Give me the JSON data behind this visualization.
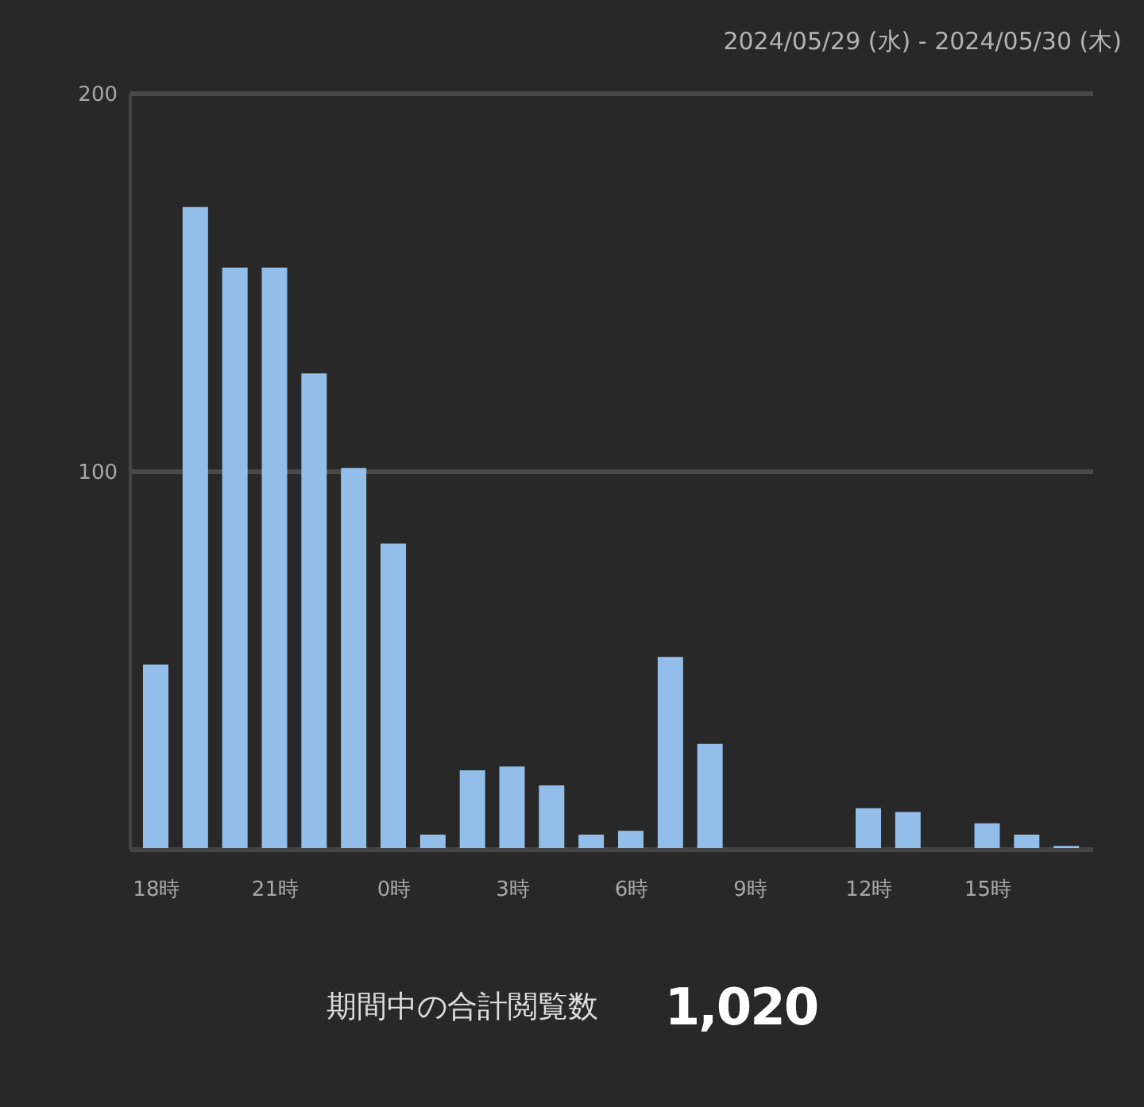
{
  "chart_data": {
    "type": "bar",
    "title": "2024/05/29 (水) - 2024/05/30 (木)",
    "categories": [
      "18時",
      null,
      null,
      "21時",
      null,
      null,
      "0時",
      null,
      null,
      "3時",
      null,
      null,
      "6時",
      null,
      null,
      "9時",
      null,
      null,
      "12時",
      null,
      null,
      "15時",
      null,
      null
    ],
    "values": [
      49,
      170,
      154,
      154,
      126,
      101,
      81,
      4,
      21,
      22,
      17,
      4,
      5,
      51,
      28,
      0,
      0,
      0,
      11,
      10,
      0,
      7,
      4,
      1
    ],
    "color": "#92bee9",
    "ylim": [
      0,
      200
    ],
    "yticks": [
      100,
      200
    ],
    "grid": "y",
    "annotations": [
      "期間中の合計閲覧数",
      "1,020"
    ]
  }
}
